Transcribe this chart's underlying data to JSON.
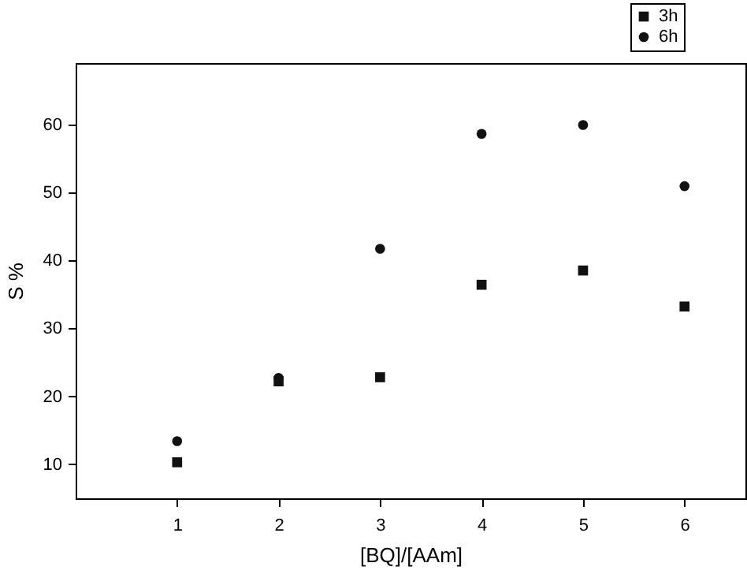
{
  "chart_data": {
    "type": "scatter",
    "xlabel": "[BQ]/[AAm]",
    "ylabel": "S %",
    "x": [
      1,
      2,
      3,
      4,
      5,
      6
    ],
    "series": [
      {
        "name": "3h",
        "color": "#111111",
        "marker": "square",
        "values": [
          10.3,
          22.2,
          22.8,
          36.4,
          38.5,
          33.2
        ]
      },
      {
        "name": "6h",
        "color": "#111111",
        "marker": "circle",
        "values": [
          13.4,
          22.7,
          41.7,
          58.6,
          59.9,
          50.9
        ]
      }
    ],
    "xlim": [
      0,
      6.6
    ],
    "xticks": [
      1,
      2,
      3,
      4,
      5,
      6
    ],
    "ylim": [
      5,
      69
    ],
    "yticks": [
      10,
      20,
      30,
      40,
      50,
      60
    ],
    "grid": false,
    "legend": "top right"
  }
}
